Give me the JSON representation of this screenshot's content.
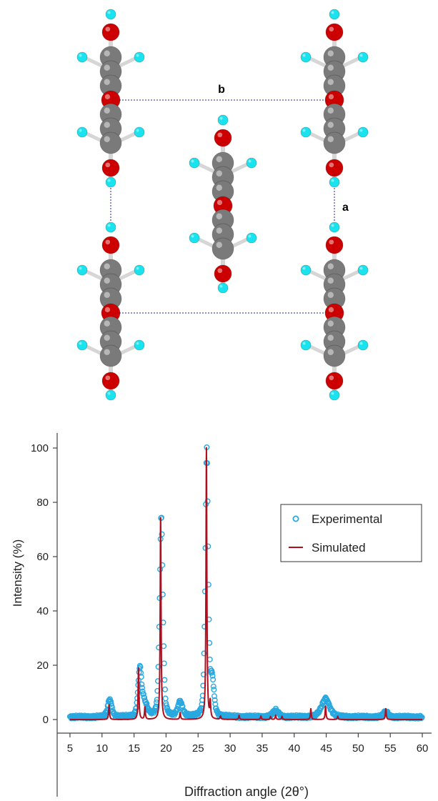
{
  "structure": {
    "axis_b_label": "b",
    "axis_a_label": "a",
    "colors": {
      "oxygen": "#cc0000",
      "carbon": "#7a7a7a",
      "hydrogen": "#19e3ee",
      "bond": "#d6d6d6",
      "cell": "#1c1ca6"
    }
  },
  "chart_data": {
    "type": "line",
    "title": "",
    "xlabel": "Diffraction angle (2θ°)",
    "ylabel": "Intensity (%)",
    "xlim": [
      3,
      61
    ],
    "ylim": [
      -5,
      105
    ],
    "xticks": [
      5,
      10,
      15,
      20,
      25,
      30,
      35,
      40,
      45,
      50,
      55,
      60
    ],
    "yticks": [
      0,
      20,
      40,
      60,
      80,
      100
    ],
    "legend_position": "upper-right",
    "legend": [
      "Experimental",
      "Simulated"
    ],
    "series": [
      {
        "name": "Experimental",
        "style": "open-circle markers",
        "color": "#29a8e0",
        "peaks": [
          {
            "x": 11.2,
            "height": 6.5,
            "width": 0.35
          },
          {
            "x": 15.9,
            "height": 17,
            "width": 0.3
          },
          {
            "x": 16.6,
            "height": 5,
            "width": 0.5
          },
          {
            "x": 19.25,
            "height": 74,
            "width": 0.28
          },
          {
            "x": 22.2,
            "height": 5.5,
            "width": 0.4
          },
          {
            "x": 26.35,
            "height": 99,
            "width": 0.25
          },
          {
            "x": 27.2,
            "height": 13,
            "width": 0.3
          },
          {
            "x": 37.1,
            "height": 2.5,
            "width": 0.5
          },
          {
            "x": 44.9,
            "height": 6.8,
            "width": 0.7
          },
          {
            "x": 54.3,
            "height": 2,
            "width": 0.4
          }
        ]
      },
      {
        "name": "Simulated",
        "style": "solid line",
        "color": "#b00e1e",
        "peaks": [
          {
            "x": 11.1,
            "height": 5.5
          },
          {
            "x": 15.7,
            "height": 19
          },
          {
            "x": 16.7,
            "height": 4.5
          },
          {
            "x": 19.15,
            "height": 75.5
          },
          {
            "x": 22.2,
            "height": 2.5
          },
          {
            "x": 26.3,
            "height": 100
          },
          {
            "x": 26.9,
            "height": 6
          },
          {
            "x": 28.5,
            "height": 1.2
          },
          {
            "x": 31.4,
            "height": 1.5
          },
          {
            "x": 34.8,
            "height": 1.3
          },
          {
            "x": 36.3,
            "height": 1.1
          },
          {
            "x": 37.1,
            "height": 1.6
          },
          {
            "x": 38.1,
            "height": 1.2
          },
          {
            "x": 42.6,
            "height": 4
          },
          {
            "x": 44.9,
            "height": 5
          },
          {
            "x": 46.8,
            "height": 1.2
          },
          {
            "x": 54.3,
            "height": 4
          }
        ]
      }
    ]
  }
}
